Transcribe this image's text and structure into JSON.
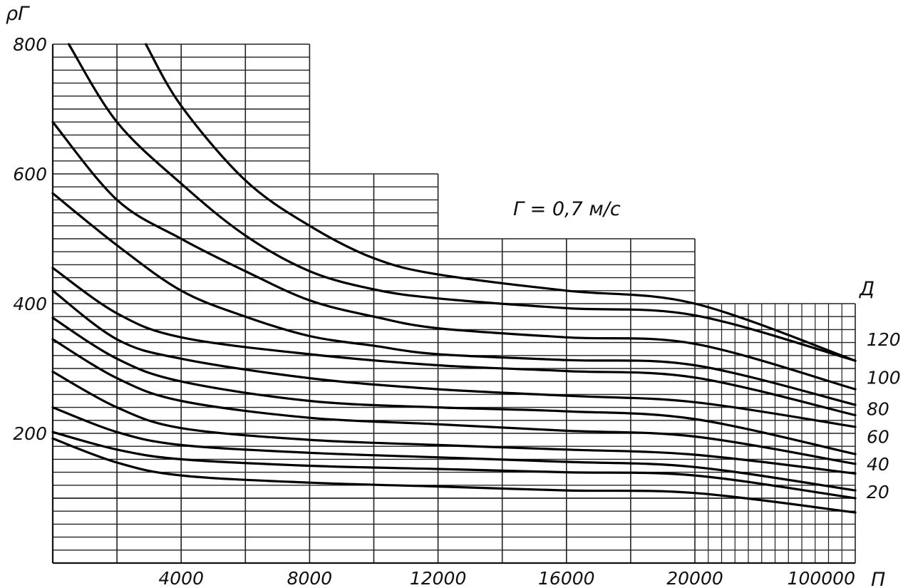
{
  "chart_data": {
    "type": "line",
    "title": "",
    "annotation": "Г = 0,7 м/с",
    "ylabel": "ρГ",
    "xlabel": "П",
    "series_axis_label": "Д",
    "ylim": [
      0,
      800
    ],
    "y_ticks": [
      200,
      400,
      600,
      800
    ],
    "x_ticks": [
      4000,
      8000,
      12000,
      16000,
      20000,
      100000
    ],
    "x_scale": "piecewise: linear 0–20000, then compressed segment 20000–100000",
    "grid": true,
    "series_labels": [
      20,
      40,
      60,
      80,
      100,
      120
    ],
    "series": [
      {
        "x": [
          0,
          2000,
          4000,
          8000,
          12000,
          16000,
          20000,
          100000
        ],
        "y": [
          192,
          155,
          135,
          124,
          118,
          112,
          108,
          78
        ]
      },
      {
        "x": [
          0,
          2000,
          4000,
          8000,
          12000,
          16000,
          20000,
          100000
        ],
        "y": [
          202,
          175,
          160,
          150,
          145,
          140,
          135,
          100
        ]
      },
      {
        "x": [
          0,
          2000,
          4000,
          8000,
          12000,
          16000,
          20000,
          100000
        ],
        "y": [
          240,
          202,
          182,
          170,
          163,
          156,
          148,
          112
        ]
      },
      {
        "x": [
          0,
          2000,
          4000,
          8000,
          12000,
          16000,
          20000,
          100000
        ],
        "y": [
          295,
          240,
          208,
          190,
          182,
          175,
          167,
          138
        ]
      },
      {
        "x": [
          0,
          2000,
          4000,
          8000,
          12000,
          16000,
          20000,
          100000
        ],
        "y": [
          345,
          285,
          250,
          224,
          214,
          204,
          195,
          153
        ]
      },
      {
        "x": [
          0,
          2000,
          4000,
          8000,
          12000,
          16000,
          20000,
          100000
        ],
        "y": [
          378,
          315,
          280,
          250,
          240,
          234,
          222,
          168
        ]
      },
      {
        "x": [
          0,
          2000,
          4000,
          8000,
          12000,
          16000,
          20000,
          100000
        ],
        "y": [
          420,
          345,
          315,
          285,
          268,
          258,
          248,
          210
        ]
      },
      {
        "x": [
          0,
          2000,
          4000,
          8000,
          12000,
          16000,
          20000,
          100000
        ],
        "y": [
          455,
          385,
          348,
          322,
          305,
          296,
          286,
          228
        ]
      },
      {
        "x": [
          0,
          2000,
          4000,
          6000,
          8000,
          10000,
          12000,
          16000,
          20000,
          100000
        ],
        "y": [
          570,
          490,
          420,
          380,
          350,
          335,
          322,
          313,
          305,
          244
        ]
      },
      {
        "x": [
          0,
          2000,
          4000,
          6000,
          8000,
          10000,
          12000,
          16000,
          20000,
          100000
        ],
        "y": [
          680,
          560,
          500,
          450,
          405,
          380,
          362,
          348,
          338,
          268
        ]
      },
      {
        "x": [
          500,
          2000,
          4000,
          6000,
          8000,
          10000,
          12000,
          16000,
          20000,
          100000
        ],
        "y": [
          800,
          680,
          585,
          505,
          450,
          422,
          408,
          393,
          382,
          312
        ]
      },
      {
        "x": [
          2900,
          4000,
          6000,
          8000,
          10000,
          12000,
          16000,
          20000,
          100000
        ],
        "y": [
          800,
          705,
          590,
          520,
          470,
          445,
          420,
          400,
          312
        ]
      }
    ]
  }
}
